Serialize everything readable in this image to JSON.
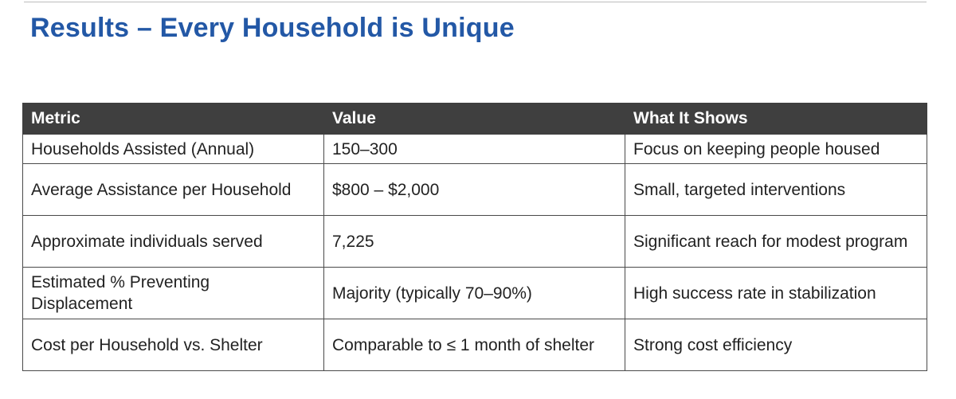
{
  "slide": {
    "title": "Results – Every Household is Unique"
  },
  "table": {
    "headers": [
      "Metric",
      "Value",
      "What It Shows"
    ],
    "rows": [
      [
        "Households Assisted (Annual)",
        "150–300",
        "Focus on keeping people housed"
      ],
      [
        "Average Assistance per Household",
        "$800 – $2,000",
        "Small, targeted interventions"
      ],
      [
        "Approximate individuals served",
        "7,225",
        "Significant reach for modest program"
      ],
      [
        "Estimated % Preventing Displacement",
        "Majority (typically 70–90%)",
        "High success rate in stabilization"
      ],
      [
        "Cost per Household vs. Shelter",
        "Comparable to ≤ 1 month of shelter",
        "Strong cost efficiency"
      ]
    ]
  },
  "colors": {
    "title": "#2358a6",
    "header_bg": "#3f3f3f",
    "header_text": "#ffffff",
    "border": "#4a4a4a"
  }
}
